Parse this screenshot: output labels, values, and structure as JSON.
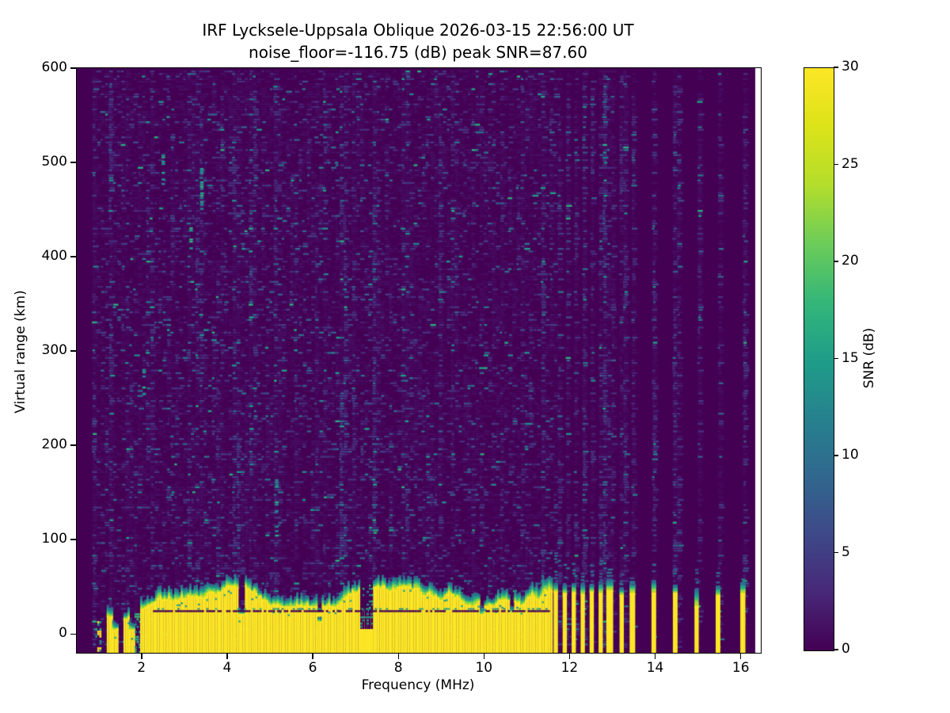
{
  "chart_data": {
    "type": "heatmap",
    "title": "IRF Lycksele-Uppsala Oblique 2026-03-15 22:56:00  UT",
    "subtitle": "noise_floor=-116.75 (dB) peak SNR=87.60",
    "xlabel": "Frequency (MHz)",
    "ylabel": "Virtual range (km)",
    "colorbar_label": "SNR (dB)",
    "noise_floor_db": -116.75,
    "peak_snr_db": 87.6,
    "x_range_mhz": [
      0.47,
      16.5
    ],
    "y_range_km": [
      -19,
      600
    ],
    "x_ticks": [
      2,
      4,
      6,
      8,
      10,
      12,
      14,
      16
    ],
    "y_ticks": [
      0,
      100,
      200,
      300,
      400,
      500,
      600
    ],
    "colorbar_ticks": [
      0,
      5,
      10,
      15,
      20,
      25,
      30
    ],
    "snr_scale_db": [
      0,
      30
    ],
    "colormap": "viridis",
    "colormap_stops": [
      "#440154",
      "#482878",
      "#3e4989",
      "#31688e",
      "#26828e",
      "#1f9e89",
      "#35b779",
      "#6dcd59",
      "#b4de2c",
      "#dce319",
      "#fde725"
    ],
    "background_color": "#440154",
    "signal_color": "#fde725",
    "fringe_colors": [
      "#fde725",
      "#d1e21b",
      "#a8db34",
      "#73d056",
      "#3fbc73",
      "#23a884",
      "#21918c",
      "#2c728e"
    ],
    "noise_palette": {
      "low": [
        "#45075b",
        "#46095e",
        "#470d60",
        "#471064"
      ],
      "mid": [
        "#482173",
        "#472d7b",
        "#46327e",
        "#433d84"
      ],
      "blue": [
        "#3d4e8a",
        "#355f8d",
        "#2d708e"
      ],
      "teal": [
        "#26828e",
        "#21918c",
        "#1fa088",
        "#2ab07f"
      ]
    },
    "data_f_start_mhz": 0.84,
    "noise_continuous_until_mhz": 11.62,
    "echo_band": {
      "f_start": 1.95,
      "f_end": 11.55,
      "solid_top_km": 27,
      "notch_km": 26,
      "finger_above_notch_km": [
        4,
        22
      ],
      "fringe_depth_km": [
        4,
        12
      ],
      "bulge": {
        "f_start": 11.15,
        "rise_km_per_mhz": 60
      }
    },
    "left_segments": [
      {
        "f0": 0.9,
        "f1": 1.04,
        "mode": "mixed-low"
      },
      {
        "f0": 1.04,
        "f1": 1.17,
        "mode": "gap"
      },
      {
        "f0": 1.17,
        "f1": 1.3,
        "mode": "yellow",
        "top_km": 20
      },
      {
        "f0": 1.3,
        "f1": 1.43,
        "mode": "yellow",
        "top_km": 6
      },
      {
        "f0": 1.43,
        "f1": 1.56,
        "mode": "gap"
      },
      {
        "f0": 1.56,
        "f1": 1.69,
        "mode": "yellow",
        "top_km": 18
      },
      {
        "f0": 1.69,
        "f1": 1.82,
        "mode": "yellow",
        "top_km": 5
      },
      {
        "f0": 1.82,
        "f1": 1.95,
        "mode": "teal-sparse"
      }
    ],
    "dips": [
      {
        "f": 4.3,
        "width": 0.12,
        "top_km": 22
      },
      {
        "f": 6.1,
        "width": 0.1,
        "top_km": 14
      },
      {
        "f": 7.22,
        "width": 0.26,
        "top_km": 5,
        "deep": true
      },
      {
        "f": 9.9,
        "width": 0.1,
        "top_km": 22
      },
      {
        "f": 10.6,
        "width": 0.12,
        "top_km": 24
      }
    ],
    "stripes": [
      {
        "f": 11.66,
        "top_km": 46,
        "width_mhz": 0.1
      },
      {
        "f": 11.87,
        "top_km": 44,
        "width_mhz": 0.1
      },
      {
        "f": 12.08,
        "top_km": 45,
        "width_mhz": 0.1
      },
      {
        "f": 12.29,
        "top_km": 43,
        "width_mhz": 0.1
      },
      {
        "f": 12.5,
        "top_km": 46,
        "width_mhz": 0.1
      },
      {
        "f": 12.71,
        "top_km": 44,
        "width_mhz": 0.1
      },
      {
        "f": 12.92,
        "top_km": 47,
        "width_mhz": 0.16
      },
      {
        "f": 13.2,
        "top_km": 42,
        "width_mhz": 0.1
      },
      {
        "f": 13.45,
        "top_km": 44,
        "width_mhz": 0.13
      },
      {
        "f": 13.95,
        "top_km": 45,
        "width_mhz": 0.11
      },
      {
        "f": 14.45,
        "top_km": 44,
        "width_mhz": 0.11
      },
      {
        "f": 14.95,
        "top_km": 30,
        "width_mhz": 0.1,
        "teal_top_km": 48
      },
      {
        "f": 15.45,
        "top_km": 42,
        "width_mhz": 0.11
      },
      {
        "f": 16.03,
        "top_km": 44,
        "width_mhz": 0.12
      }
    ],
    "streaks": [
      {
        "f": 3.35,
        "km": [
          448,
          495
        ],
        "density": 0.8
      },
      {
        "f": 2.45,
        "km": [
          478,
          512
        ],
        "density": 0.5
      },
      {
        "f": 2.0,
        "km": [
          248,
          282
        ],
        "density": 0.45
      },
      {
        "f": 5.1,
        "km": [
          98,
          165
        ],
        "density": 0.35
      },
      {
        "f": 3.1,
        "km": [
          410,
          432
        ],
        "density": 0.4
      }
    ]
  }
}
